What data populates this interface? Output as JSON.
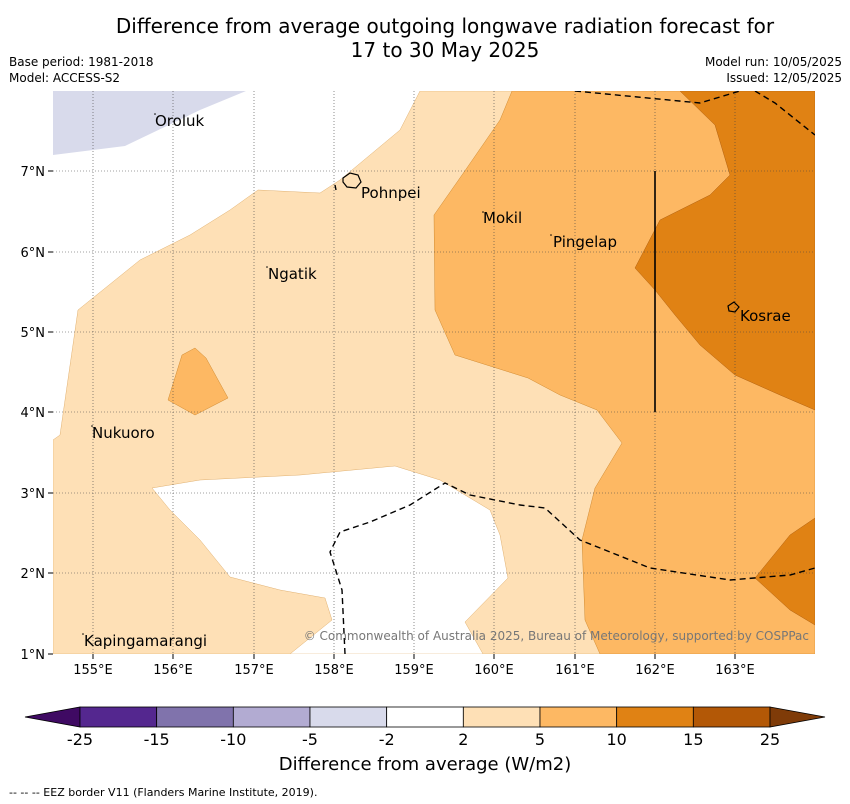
{
  "title": {
    "line1": "Difference from average outgoing longwave radiation forecast for",
    "line2": "17 to 30 May 2025"
  },
  "meta": {
    "base_period": "Base period: 1981-2018",
    "model": "Model: ACCESS-S2",
    "model_run": "Model run: 10/05/2025",
    "issued": "Issued: 12/05/2025"
  },
  "map": {
    "lon_ticks": [
      "155°E",
      "156°E",
      "157°E",
      "158°E",
      "159°E",
      "160°E",
      "161°E",
      "162°E",
      "163°E"
    ],
    "lat_ticks": [
      "7°N",
      "6°N",
      "5°N",
      "4°N",
      "3°N",
      "2°N",
      "1°N"
    ],
    "places": [
      {
        "name": "Oroluk",
        "lon": 155.75,
        "lat": 7.65
      },
      {
        "name": "Pohnpei",
        "lon": 158.2,
        "lat": 6.9
      },
      {
        "name": "Mokil",
        "lon": 159.8,
        "lat": 6.5
      },
      {
        "name": "Pingelap",
        "lon": 160.7,
        "lat": 6.2
      },
      {
        "name": "Ngatik",
        "lon": 157.1,
        "lat": 5.8
      },
      {
        "name": "Kosrae",
        "lon": 162.95,
        "lat": 5.3
      },
      {
        "name": "Nukuoro",
        "lon": 154.8,
        "lat": 3.85
      },
      {
        "name": "Kapingamarangi",
        "lon": 154.95,
        "lat": 1.25
      }
    ],
    "copyright": "© Commonwealth of Australia 2025, Bureau of Meteorology, supported by COSPPac"
  },
  "colorbar": {
    "ticks": [
      "-25",
      "-15",
      "-10",
      "-5",
      "-2",
      "2",
      "5",
      "10",
      "15",
      "25"
    ],
    "colors": [
      "#3f0a63",
      "#54278f",
      "#8073ac",
      "#b2abd2",
      "#d8daeb",
      "#ffffff",
      "#fee0b6",
      "#fdb863",
      "#e08214",
      "#b35806",
      "#7f3b08"
    ],
    "label": "Difference from average (W/m2)"
  },
  "footer": "--  --  -- EEZ border V11 (Flanders Marine Institute, 2019)."
}
